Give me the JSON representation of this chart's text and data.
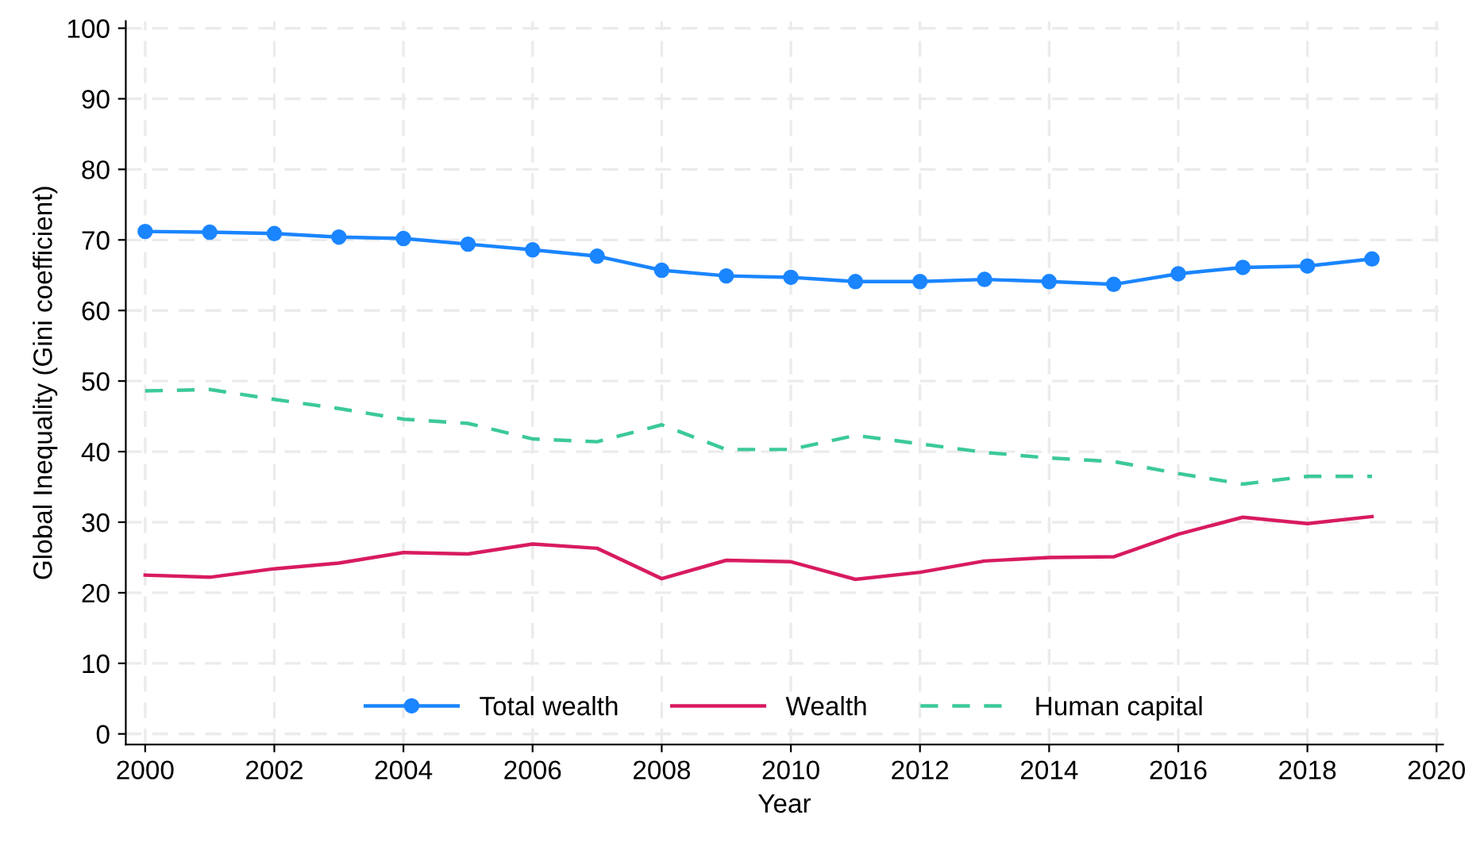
{
  "chart_data": {
    "type": "line",
    "xlabel": "Year",
    "ylabel": "Global Inequality (Gini coefficient)",
    "x": [
      2000,
      2001,
      2002,
      2003,
      2004,
      2005,
      2006,
      2007,
      2008,
      2009,
      2010,
      2011,
      2012,
      2013,
      2014,
      2015,
      2016,
      2017,
      2018,
      2019
    ],
    "series": [
      {
        "name": "Total wealth",
        "color": "#1a85ff",
        "marker": "circle",
        "line_style": "solid",
        "values": [
          71.2,
          71.1,
          70.9,
          70.4,
          70.2,
          69.4,
          68.6,
          67.7,
          65.7,
          64.9,
          64.7,
          64.1,
          64.1,
          64.4,
          64.1,
          63.7,
          65.2,
          66.1,
          66.3,
          67.3
        ]
      },
      {
        "name": "Wealth",
        "color": "#d81b60",
        "marker": "none",
        "line_style": "solid",
        "values": [
          22.5,
          22.2,
          23.4,
          24.2,
          25.7,
          25.5,
          26.9,
          26.3,
          22.0,
          24.6,
          24.4,
          21.9,
          22.9,
          24.5,
          25.0,
          25.1,
          28.3,
          30.7,
          29.8,
          30.8
        ]
      },
      {
        "name": "Human capital",
        "color": "#3cc99a",
        "marker": "none",
        "line_style": "dashed",
        "values": [
          48.6,
          48.8,
          47.4,
          46.1,
          44.6,
          44.0,
          41.8,
          41.4,
          43.8,
          40.3,
          40.3,
          42.3,
          41.1,
          39.9,
          39.1,
          38.6,
          36.9,
          35.4,
          36.5,
          36.5
        ]
      }
    ],
    "xlim": [
      1999.7,
      2020.1
    ],
    "xticks": [
      2000,
      2002,
      2004,
      2006,
      2008,
      2010,
      2012,
      2014,
      2016,
      2018,
      2020
    ],
    "ylim": [
      -1.5,
      101
    ],
    "yticks": [
      0,
      10,
      20,
      30,
      40,
      50,
      60,
      70,
      80,
      90,
      100
    ],
    "grid": true,
    "legend": "bottom"
  }
}
